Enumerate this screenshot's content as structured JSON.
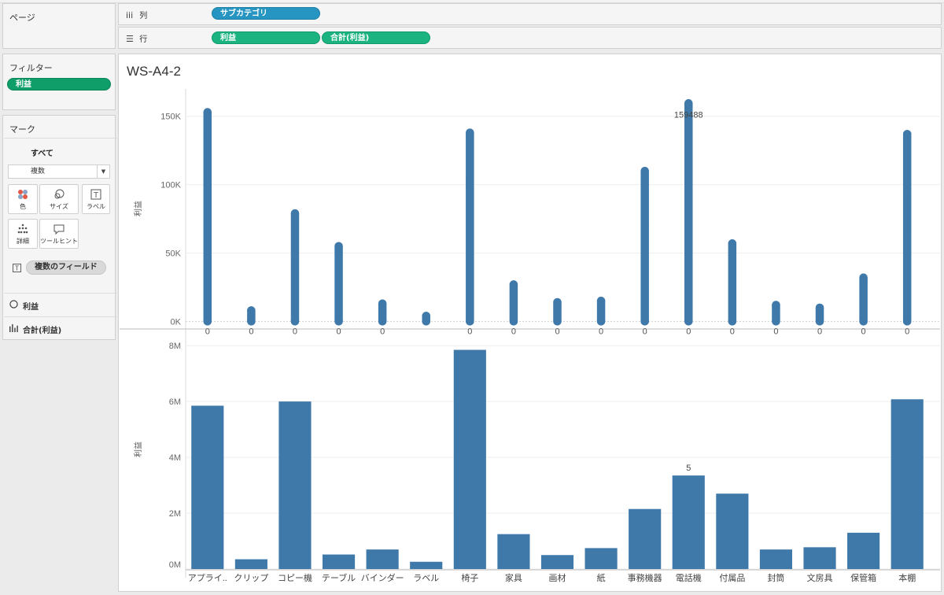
{
  "pages_panel": {
    "title": "ページ"
  },
  "columns_shelf": {
    "label": "列",
    "icon": "columns-icon",
    "pills": [
      "サブカテゴリ"
    ]
  },
  "rows_shelf": {
    "label": "行",
    "icon": "rows-icon",
    "pills": [
      "利益",
      "合計(利益)"
    ]
  },
  "filters_panel": {
    "title": "フィルター",
    "pills": [
      "利益"
    ]
  },
  "marks_panel": {
    "title": "マーク",
    "all_tab": "すべて",
    "mark_type": "複数",
    "buttons": [
      {
        "label": "色",
        "icon": "color-icon"
      },
      {
        "label": "サイズ",
        "icon": "size-icon"
      },
      {
        "label": "ラベル",
        "icon": "label-icon"
      },
      {
        "label": "詳細",
        "icon": "detail-icon"
      },
      {
        "label": "ツールヒント",
        "icon": "tooltip-icon"
      }
    ],
    "multi_fields": "複数のフィールド",
    "cards": [
      {
        "label": "利益",
        "icon": "circle-icon"
      },
      {
        "label": "合計(利益)",
        "icon": "bar-chart-icon"
      }
    ]
  },
  "worksheet": {
    "title": "WS-A4-2"
  },
  "colors": {
    "mark": "#3f79aa",
    "pill_green": "#1bb37f",
    "pill_blue": "#2695c1"
  },
  "chart_data": [
    {
      "type": "scatter",
      "ylabel": "利益",
      "y_ticks": [
        "0K",
        "50K",
        "100K",
        "150K"
      ],
      "ylim": [
        -5000,
        170000
      ],
      "categories": [
        "アプライ..",
        "クリップ",
        "コピー機",
        "テーブル",
        "バインダー",
        "ラベル",
        "椅子",
        "家具",
        "画材",
        "紙",
        "事務機器",
        "電話機",
        "付属品",
        "封筒",
        "文房具",
        "保管箱",
        "本棚"
      ],
      "point_max": [
        153000,
        8000,
        79000,
        55000,
        13000,
        4000,
        138000,
        27000,
        14000,
        15000,
        110000,
        159488,
        57000,
        12000,
        10000,
        32000,
        137000
      ],
      "extra_points": [
        [
          0,
          138000
        ],
        [
          0,
          106000
        ],
        [
          0,
          99000
        ],
        [
          6,
          105000
        ],
        [
          6,
          100000
        ],
        [
          10,
          70000
        ],
        [
          11,
          132000
        ],
        [
          11,
          121000
        ],
        [
          11,
          112000
        ],
        [
          11,
          102000
        ],
        [
          11,
          89000
        ],
        [
          11,
          83000
        ],
        [
          11,
          74000
        ],
        [
          11,
          65000
        ],
        [
          11,
          59000
        ],
        [
          11,
          40000
        ],
        [
          12,
          48000
        ],
        [
          15,
          29000
        ],
        [
          16,
          89000
        ],
        [
          16,
          82000
        ],
        [
          16,
          78000
        ],
        [
          16,
          70000
        ]
      ],
      "zero_labels": [
        "0",
        "0",
        "0",
        "0",
        "0",
        "",
        "0",
        "0",
        "0",
        "0",
        "0",
        "0",
        "0",
        "0",
        "0",
        "0",
        "0"
      ],
      "annotation": {
        "category": "電話機",
        "value": 159488,
        "text": "159488"
      }
    },
    {
      "type": "bar",
      "ylabel": "利益",
      "y_ticks": [
        "0M",
        "2M",
        "4M",
        "6M",
        "8M"
      ],
      "ylim": [
        0,
        8400000
      ],
      "categories": [
        "アプライ..",
        "クリップ",
        "コピー機",
        "テーブル",
        "バインダー",
        "ラベル",
        "椅子",
        "家具",
        "画材",
        "紙",
        "事務機器",
        "電話機",
        "付属品",
        "封筒",
        "文房具",
        "保管箱",
        "本棚"
      ],
      "values": [
        5850000,
        350000,
        6000000,
        520000,
        700000,
        260000,
        7850000,
        1250000,
        500000,
        750000,
        2150000,
        3350000,
        2700000,
        700000,
        780000,
        1300000,
        6080000
      ],
      "annotation": {
        "category": "電話機",
        "text": "5"
      }
    }
  ]
}
